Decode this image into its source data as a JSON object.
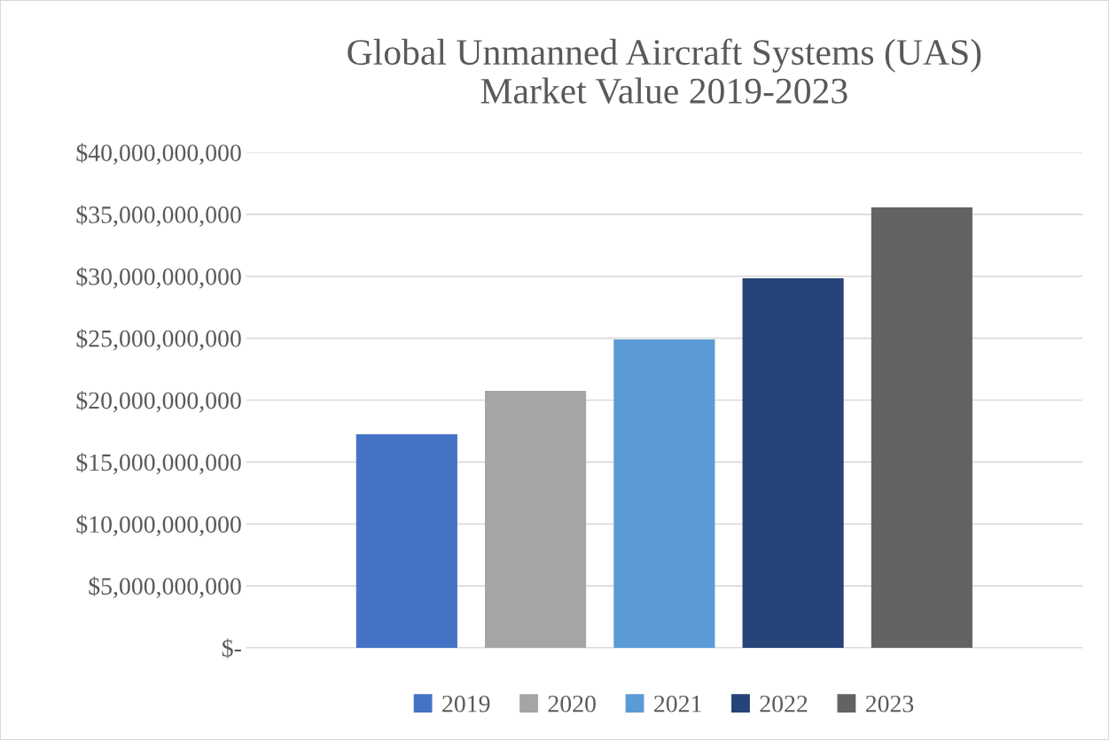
{
  "chart_data": {
    "type": "bar",
    "title": "Global Unmanned Aircraft Systems (UAS)\nMarket Value 2019-2023",
    "categories": [
      null
    ],
    "series": [
      {
        "name": "2019",
        "color": "#4472c4",
        "values": [
          17240000000
        ]
      },
      {
        "name": "2020",
        "color": "#a5a5a5",
        "values": [
          20750000000
        ]
      },
      {
        "name": "2021",
        "color": "#5b9bd5",
        "values": [
          24900000000
        ]
      },
      {
        "name": "2022",
        "color": "#264478",
        "values": [
          29840000000
        ]
      },
      {
        "name": "2023",
        "color": "#636363",
        "values": [
          35560000000
        ]
      }
    ],
    "ylim": [
      0,
      40000000000
    ],
    "yticks": [
      {
        "value": 0,
        "label": "$-"
      },
      {
        "value": 5000000000,
        "label": "$5,000,000,000"
      },
      {
        "value": 10000000000,
        "label": "$10,000,000,000"
      },
      {
        "value": 15000000000,
        "label": "$15,000,000,000"
      },
      {
        "value": 20000000000,
        "label": "$20,000,000,000"
      },
      {
        "value": 25000000000,
        "label": "$25,000,000,000"
      },
      {
        "value": 30000000000,
        "label": "$30,000,000,000"
      },
      {
        "value": 35000000000,
        "label": "$35,000,000,000"
      },
      {
        "value": 40000000000,
        "label": "$40,000,000,000"
      }
    ],
    "grid": "y",
    "legend": "bottom"
  }
}
